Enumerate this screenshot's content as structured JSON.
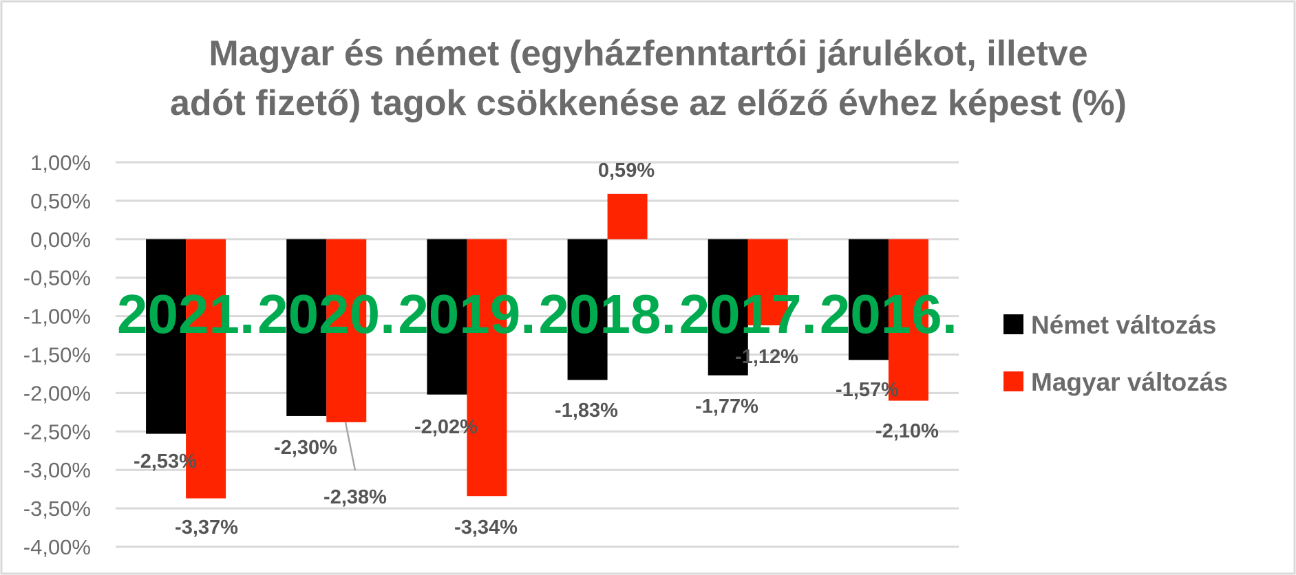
{
  "chart_data": {
    "type": "bar",
    "title": [
      "Magyar és német (egyházfenntartói járulékot, illetve",
      "adót fizető) tagok csökkenése az előző évhez képest (%)"
    ],
    "categories": [
      "2021.",
      "2020.",
      "2019.",
      "2018.",
      "2017.",
      "2016."
    ],
    "series": [
      {
        "name": "Német változás",
        "color": "#000000",
        "values": [
          -2.53,
          -2.3,
          -2.02,
          -1.83,
          -1.77,
          -1.57
        ],
        "labels": [
          "-2,53%",
          "-2,30%",
          "-2,02%",
          "-1,83%",
          "-1,77%",
          "-1,57%"
        ]
      },
      {
        "name": "Magyar változás",
        "color": "#FF2400",
        "values": [
          -3.37,
          -2.38,
          -3.34,
          0.59,
          -1.12,
          -2.1
        ],
        "labels": [
          "-3,37%",
          "-2,38%",
          "-3,34%",
          "0,59%",
          "-1,12%",
          "-2,10%"
        ]
      }
    ],
    "ylim": [
      -4.0,
      1.0
    ],
    "yticks": [
      "1,00%",
      "0,50%",
      "0,00%",
      "-0,50%",
      "-1,00%",
      "-1,50%",
      "-2,00%",
      "-2,50%",
      "-3,00%",
      "-3,50%",
      "-4,00%"
    ],
    "category_label_color": "#00AA4F",
    "grid": true,
    "legend": "right"
  }
}
